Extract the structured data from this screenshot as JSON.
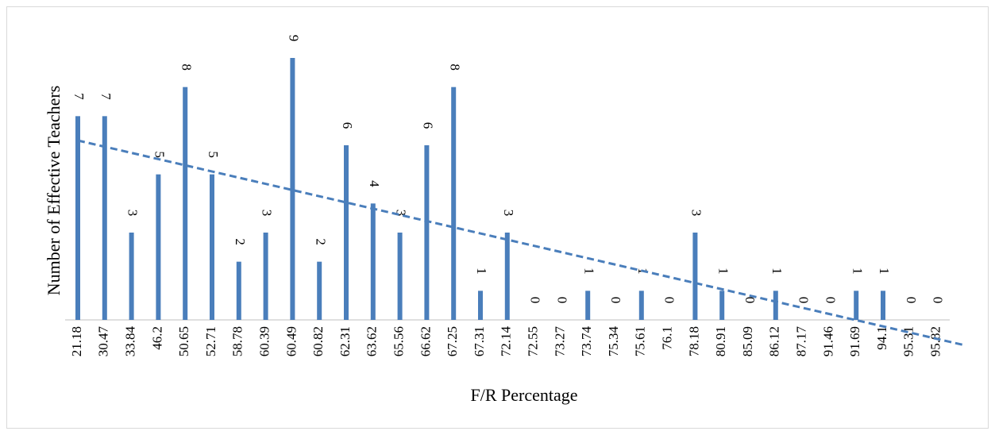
{
  "chart_data": {
    "type": "bar",
    "x_label": "F/R Percentage",
    "y_label": "Number of  Effective Teachers",
    "categories": [
      "21.18",
      "30.47",
      "33.84",
      "46.2",
      "50.65",
      "52.71",
      "58.78",
      "60.39",
      "60.49",
      "60.82",
      "62.31",
      "63.62",
      "65.56",
      "66.62",
      "67.25",
      "67.31",
      "72.14",
      "72.55",
      "73.27",
      "73.74",
      "75.34",
      "75.61",
      "76.1",
      "78.18",
      "80.91",
      "85.09",
      "86.12",
      "87.17",
      "91.46",
      "91.69",
      "94.1",
      "95.31",
      "95.82"
    ],
    "values": [
      7,
      7,
      3,
      5,
      8,
      5,
      2,
      3,
      9,
      2,
      6,
      4,
      3,
      6,
      8,
      1,
      3,
      0,
      0,
      1,
      0,
      1,
      0,
      3,
      1,
      0,
      1,
      0,
      0,
      1,
      1,
      0,
      0
    ],
    "color": "#4a7ebb",
    "ylim": [
      0,
      9
    ],
    "trendline": "linear"
  }
}
